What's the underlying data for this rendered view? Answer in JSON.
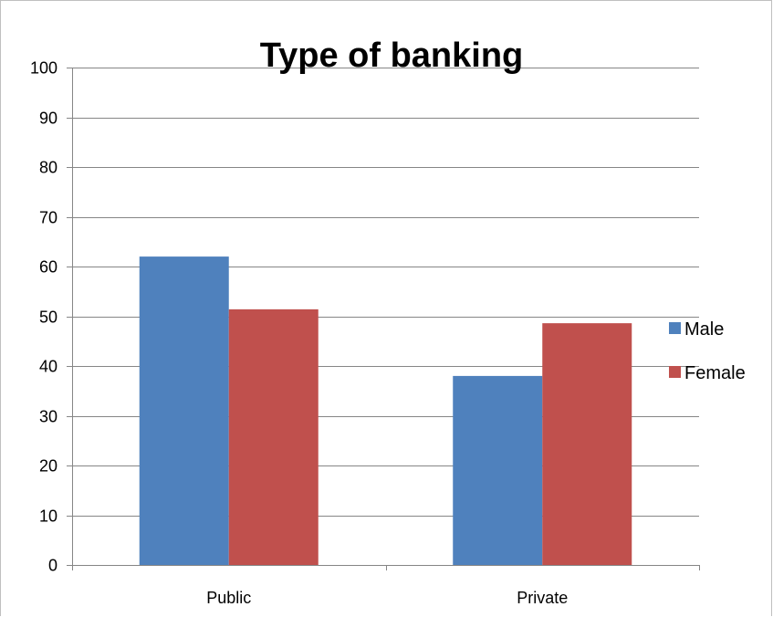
{
  "chart_data": {
    "type": "bar",
    "title": "Type of banking",
    "xlabel": "",
    "ylabel": "",
    "categories": [
      "Public",
      "Private"
    ],
    "series": [
      {
        "name": "Male",
        "values": [
          62,
          38
        ],
        "color": "#4f81bd"
      },
      {
        "name": "Female",
        "values": [
          51.4,
          48.6
        ],
        "color": "#c0504d"
      }
    ],
    "ylim": [
      0,
      100
    ],
    "yticks": [
      0,
      10,
      20,
      30,
      40,
      50,
      60,
      70,
      80,
      90,
      100
    ],
    "grid": true,
    "legend_position": "right"
  }
}
